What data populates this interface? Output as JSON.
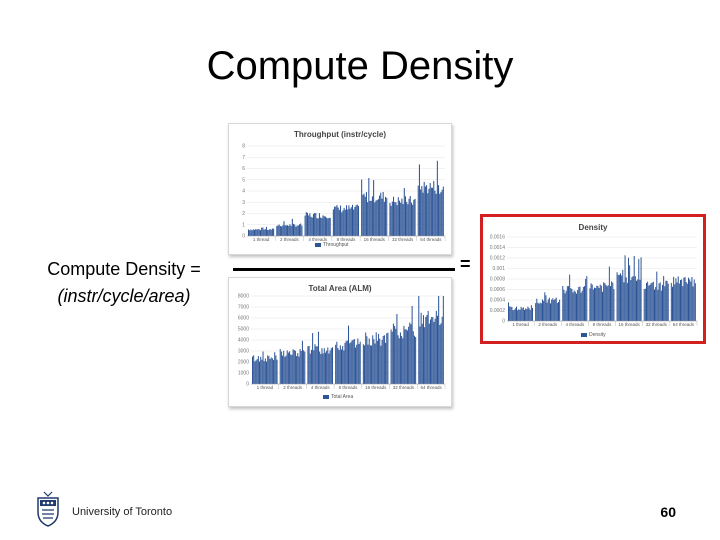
{
  "slide": {
    "title": "Compute Density",
    "lhs_line1": "Compute Density =",
    "lhs_line2": "(instr/cycle/area)",
    "equals": "=",
    "footer": "University of Toronto",
    "page_number": "60"
  },
  "colors": {
    "bar": "#2e5597",
    "highlight_border": "#d21f1f"
  },
  "chart_data": [
    {
      "type": "bar",
      "title": "Throughput (instr/cycle)",
      "legend": "Throughput",
      "categories": [
        "1 thread",
        "2 threads",
        "4 threads",
        "8 threads",
        "16 threads",
        "32 threads",
        "64 threads"
      ],
      "ylim": [
        0,
        8
      ],
      "yticks": [
        "0",
        "1",
        "2",
        "3",
        "4",
        "5",
        "6",
        "7",
        "8"
      ],
      "group_values": [
        0.6,
        1.0,
        1.9,
        2.5,
        3.6,
        3.2,
        4.5
      ]
    },
    {
      "type": "bar",
      "title": "Total Area (ALM)",
      "legend": "Total Area",
      "categories": [
        "1 thread",
        "2 threads",
        "4 threads",
        "8 threads",
        "16 threads",
        "32 threads",
        "64 threads"
      ],
      "ylim": [
        0,
        8000
      ],
      "yticks": [
        "0",
        "1000",
        "2000",
        "3000",
        "4000",
        "5000",
        "6000",
        "7000",
        "8000"
      ],
      "group_values": [
        2400,
        2900,
        3300,
        3700,
        4200,
        5000,
        6000
      ]
    },
    {
      "type": "bar",
      "title": "Density",
      "legend": "Density",
      "categories": [
        "1 thread",
        "2 threads",
        "4 threads",
        "8 threads",
        "16 threads",
        "32 threads",
        "64 threads"
      ],
      "ylim": [
        0,
        0.0016
      ],
      "yticks": [
        "0",
        "0.0002",
        "0.0004",
        "0.0006",
        "0.0008",
        "0.001",
        "0.0012",
        "0.0014",
        "0.0016"
      ],
      "group_values": [
        0.00025,
        0.0004,
        0.0006,
        0.00068,
        0.00088,
        0.0007,
        0.00078
      ]
    }
  ]
}
